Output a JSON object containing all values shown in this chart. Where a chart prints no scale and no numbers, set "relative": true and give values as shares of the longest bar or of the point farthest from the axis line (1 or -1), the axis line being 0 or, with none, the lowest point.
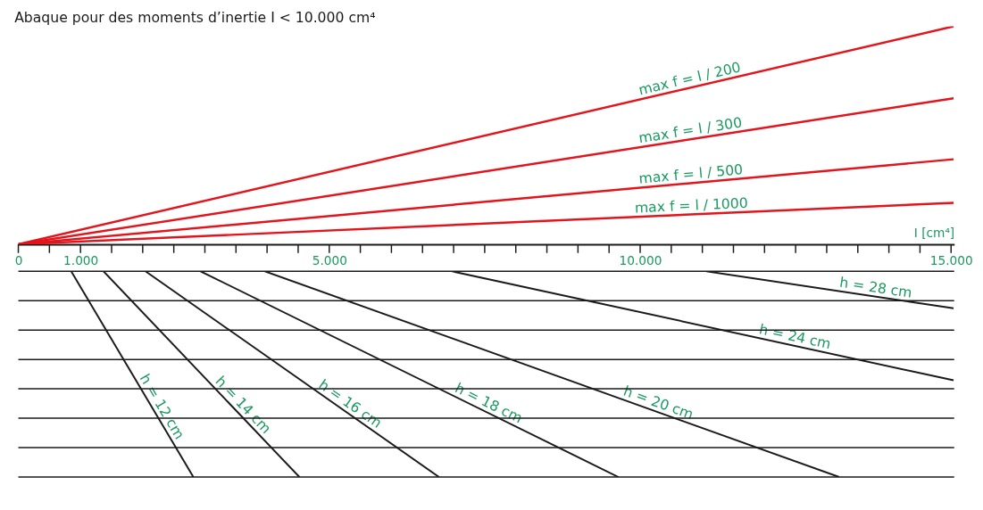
{
  "chart_data": [
    {
      "type": "line",
      "title": "Abaque pour des moments d’inertie I < 10.000 cm⁴",
      "xlabel": "I [cm⁴]",
      "relative": true,
      "xlim": [
        0,
        15050
      ],
      "xticks": [
        0,
        {
          "value": 500,
          "label": null
        },
        {
          "value": 1000,
          "label": "1.000"
        },
        {
          "value": 1500,
          "label": null
        },
        {
          "value": 2000,
          "label": null
        },
        {
          "value": 2500,
          "label": null
        },
        {
          "value": 3000,
          "label": null
        },
        {
          "value": 3500,
          "label": null
        },
        {
          "value": 4000,
          "label": null
        },
        {
          "value": 4500,
          "label": null
        },
        {
          "value": 5000,
          "label": "5.000"
        },
        {
          "value": 5500,
          "label": null
        },
        {
          "value": 6000,
          "label": null
        },
        {
          "value": 6500,
          "label": null
        },
        {
          "value": 7000,
          "label": null
        },
        {
          "value": 7500,
          "label": null
        },
        {
          "value": 8000,
          "label": null
        },
        {
          "value": 8500,
          "label": null
        },
        {
          "value": 9000,
          "label": null
        },
        {
          "value": 9500,
          "label": null
        },
        {
          "value": 10000,
          "label": "10.000"
        },
        {
          "value": 10500,
          "label": null
        },
        {
          "value": 11000,
          "label": null
        },
        {
          "value": 11500,
          "label": null
        },
        {
          "value": 12000,
          "label": null
        },
        {
          "value": 12500,
          "label": null
        },
        {
          "value": 13000,
          "label": null
        },
        {
          "value": 13500,
          "label": null
        },
        {
          "value": 14000,
          "label": null
        },
        {
          "value": 14500,
          "label": null
        },
        {
          "value": 15000,
          "label": "15.000"
        }
      ],
      "grid": false,
      "legend": false,
      "line_style": "solid",
      "series": [
        {
          "name": "max f = l / 200",
          "color": "#e3141b",
          "x": [
            0,
            15040
          ],
          "values": [
            0,
            1
          ]
        },
        {
          "name": "max  f = l / 300",
          "color": "#e3141b",
          "x": [
            0,
            15040
          ],
          "values": [
            0,
            0.67
          ]
        },
        {
          "name": "max  f = l / 500",
          "color": "#e3141b",
          "x": [
            0,
            15040
          ],
          "values": [
            0,
            0.39
          ]
        },
        {
          "name": "max  f = l / 1000",
          "color": "#e3141b",
          "x": [
            0,
            15040
          ],
          "values": [
            0,
            0.19
          ]
        }
      ]
    },
    {
      "type": "line",
      "relative": true,
      "xlim": [
        0,
        15050
      ],
      "tick_labels": false,
      "grid": false,
      "legend": false,
      "line_style": "solid",
      "series": [
        {
          "name": "h = 12 cm",
          "color": "#1a1a1a",
          "x": [
            850,
            2815
          ],
          "values": [
            0,
            -1
          ]
        },
        {
          "name": "h = 14 cm",
          "color": "#1a1a1a",
          "x": [
            1370,
            4520
          ],
          "values": [
            0,
            -1
          ]
        },
        {
          "name": "h = 16 cm",
          "color": "#1a1a1a",
          "x": [
            2045,
            6765
          ],
          "values": [
            0,
            -1
          ]
        },
        {
          "name": "h = 18 cm",
          "color": "#1a1a1a",
          "x": [
            2930,
            9650
          ],
          "values": [
            0,
            -1
          ]
        },
        {
          "name": "h = 20 cm",
          "color": "#1a1a1a",
          "x": [
            3965,
            13200
          ],
          "values": [
            0,
            -1
          ]
        },
        {
          "name": "h = 24 cm",
          "color": "#1a1a1a",
          "x": [
            6975,
            15040
          ],
          "values": [
            0,
            -0.53
          ]
        },
        {
          "name": "h = 28 cm",
          "color": "#1a1a1a",
          "x": [
            11065,
            15040
          ],
          "values": [
            0,
            -0.18
          ]
        }
      ],
      "ref_lines": [
        {
          "axis": "y",
          "value": 0,
          "color": "#1a1a1a"
        },
        {
          "axis": "y",
          "value": -0.143,
          "color": "#1a1a1a"
        },
        {
          "axis": "y",
          "value": -0.286,
          "color": "#1a1a1a"
        },
        {
          "axis": "y",
          "value": -0.429,
          "color": "#1a1a1a"
        },
        {
          "axis": "y",
          "value": -0.571,
          "color": "#1a1a1a"
        },
        {
          "axis": "y",
          "value": -0.714,
          "color": "#1a1a1a"
        },
        {
          "axis": "y",
          "value": -0.857,
          "color": "#1a1a1a"
        },
        {
          "axis": "y",
          "value": -1,
          "color": "#1a1a1a"
        }
      ]
    }
  ]
}
